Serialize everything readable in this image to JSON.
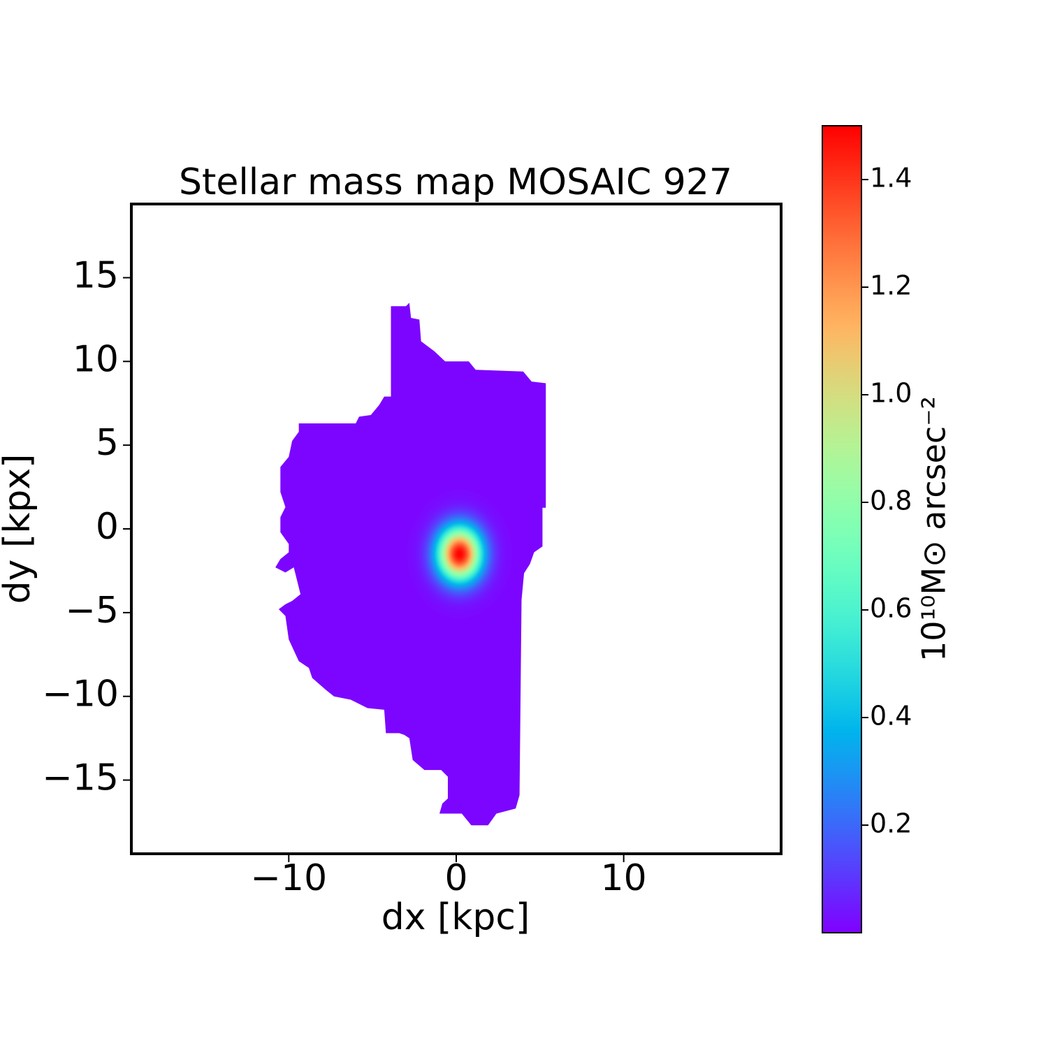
{
  "chart_data": {
    "type": "image",
    "title": "Stellar mass map MOSAIC 927",
    "xlabel": "dx [kpc]",
    "ylabel": "dy [kpx]",
    "colorbar_label": "10¹⁰M⊙ arcsec⁻²",
    "colormap": "rainbow",
    "xlim": [
      -19.4,
      19.4
    ],
    "ylim": [
      -19.4,
      19.4
    ],
    "xticks": [
      {
        "value": -10,
        "label": "−10"
      },
      0,
      10
    ],
    "yticks": [
      {
        "value": -15,
        "label": "−15"
      },
      {
        "value": -10,
        "label": "−10"
      },
      {
        "value": -5,
        "label": "−5"
      },
      0,
      5,
      10,
      15
    ],
    "clim": [
      0,
      1.5
    ],
    "cticks": [
      0.2,
      0.4,
      0.6,
      0.8,
      {
        "value": 1,
        "label": "1.0"
      },
      1.2,
      1.4
    ],
    "background": 0.01,
    "peak": {
      "x": 0.2,
      "y": -1.5,
      "value": 1.5,
      "sigma_x": 0.9,
      "sigma_y": 1.1
    },
    "outline": {
      "x": [
        -3.9,
        -3.0,
        -2.8,
        -2.7,
        -2.2,
        -2.1,
        -1.3,
        -0.66,
        0.75,
        1.16,
        4.0,
        4.5,
        5.35,
        5.35,
        5.15,
        5.15,
        4.65,
        4.4,
        4.05,
        3.9,
        3.78,
        3.55,
        2.4,
        1.9,
        0.9,
        0.33,
        -1.0,
        -0.83,
        -0.5,
        -0.5,
        -0.9,
        -1.9,
        -2.6,
        -2.8,
        -3.1,
        -3.4,
        -4.2,
        -4.3,
        -5.3,
        -6.3,
        -7.3,
        -7.8,
        -8.6,
        -8.8,
        -9.4,
        -10.0,
        -10.2,
        -10.6,
        -10.2,
        -9.8,
        -9.3,
        -9.5,
        -9.7,
        -10.2,
        -10.8,
        -10.5,
        -10.0,
        -10.0,
        -10.5,
        -10.5,
        -10.2,
        -10.5,
        -10.5,
        -10.0,
        -9.8,
        -9.4,
        -9.4,
        -6.0,
        -5.8,
        -5.1,
        -4.6,
        -4.3,
        -3.9
      ],
      "y": [
        13.3,
        13.3,
        13.5,
        12.6,
        12.5,
        11.2,
        10.6,
        10.0,
        10.0,
        9.5,
        9.4,
        8.8,
        8.7,
        1.26,
        1.26,
        -1.05,
        -1.4,
        -2.1,
        -2.65,
        -4.25,
        -15.9,
        -16.7,
        -17.0,
        -17.7,
        -17.7,
        -17.0,
        -17.0,
        -16.4,
        -16.1,
        -14.8,
        -14.4,
        -14.4,
        -13.8,
        -12.5,
        -12.3,
        -12.2,
        -12.2,
        -10.8,
        -10.7,
        -10.2,
        -10.0,
        -9.6,
        -8.9,
        -8.3,
        -7.9,
        -6.6,
        -5.2,
        -4.8,
        -4.5,
        -4.3,
        -3.9,
        -3.1,
        -2.3,
        -2.6,
        -2.3,
        -1.8,
        -1.4,
        -0.9,
        -0.2,
        0.7,
        1.3,
        2.2,
        3.7,
        4.3,
        5.25,
        5.8,
        6.3,
        6.3,
        6.7,
        6.8,
        7.4,
        7.9,
        7.9
      ]
    }
  }
}
